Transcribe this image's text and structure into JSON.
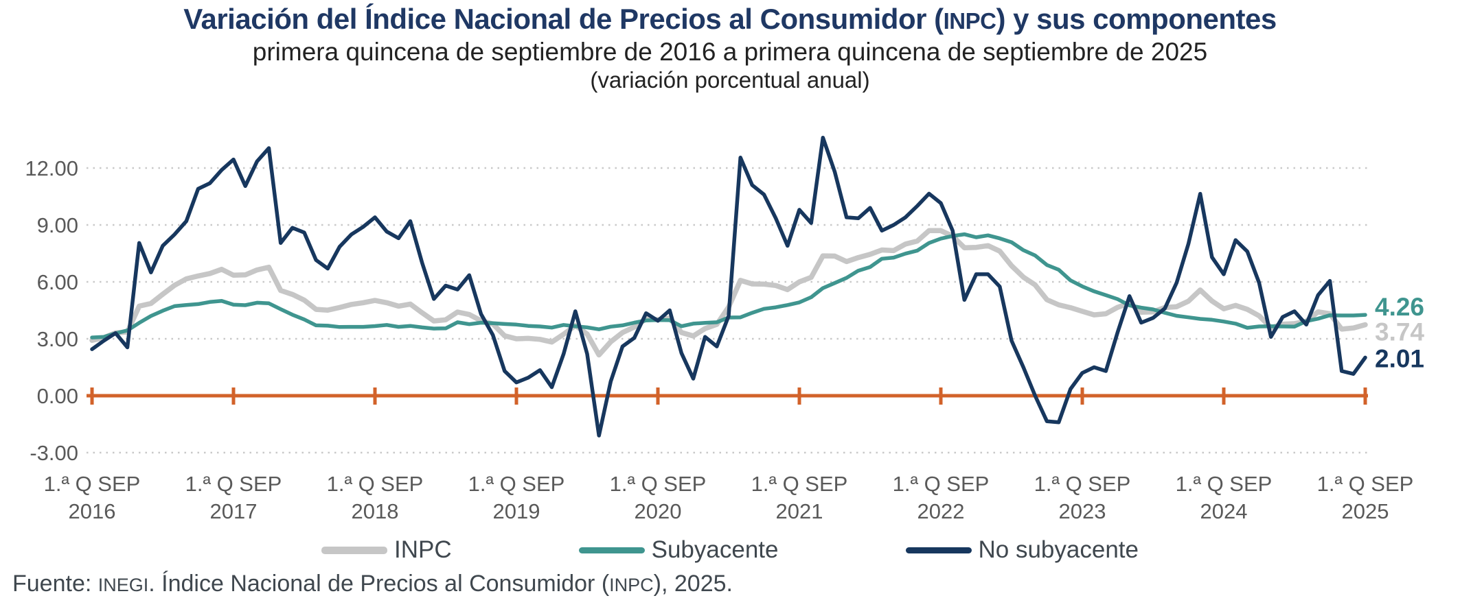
{
  "header": {
    "title_pre": "Variación del Índice Nacional de Precios al Consumidor (",
    "title_acr": "INPC",
    "title_post": ") y sus componentes",
    "subtitle": "primera quincena de septiembre de 2016 a primera quincena de septiembre de 2025",
    "subtitle2": "(variación porcentual anual)"
  },
  "footer": {
    "pre": "Fuente: ",
    "inst": "INEGI",
    "mid": ". Índice Nacional de Precios al Consumidor (",
    "acr": "INPC",
    "post": "), 2025."
  },
  "colors": {
    "title": "#1F3864",
    "inpc_line": "#C6C6C6",
    "subyacente_line": "#3F958F",
    "no_subyacente_line": "#17375E",
    "zero_axis": "#D2622A",
    "gridline": "#C9C9C9",
    "axis_text": "#595959",
    "legend_text": "#3F474E"
  },
  "chart_data": {
    "type": "line",
    "title": "Variación del Índice Nacional de Precios al Consumidor (INPC) y sus componentes",
    "subtitle": "primera quincena de septiembre de 2016 a primera quincena de septiembre de 2025",
    "ylabel": "variación porcentual anual",
    "ylim": [
      -3.0,
      13.9
    ],
    "grid": "horizontal dotted",
    "legend_position": "bottom",
    "x_tick_prefix": "1.ª Q SEP",
    "x_tick_years": [
      "2016",
      "2017",
      "2018",
      "2019",
      "2020",
      "2021",
      "2022",
      "2023",
      "2024",
      "2025"
    ],
    "y_ticks": [
      {
        "label": "12.00",
        "value": 12
      },
      {
        "label": "9.00",
        "value": 9
      },
      {
        "label": "6.00",
        "value": 6
      },
      {
        "label": "3.00",
        "value": 3
      },
      {
        "label": "0.00",
        "value": 0
      },
      {
        "label": "-3.00",
        "value": -3
      }
    ],
    "x": [
      "2016-09",
      "2016-10",
      "2016-11",
      "2016-12",
      "2017-01",
      "2017-02",
      "2017-03",
      "2017-04",
      "2017-05",
      "2017-06",
      "2017-07",
      "2017-08",
      "2017-09",
      "2017-10",
      "2017-11",
      "2017-12",
      "2018-01",
      "2018-02",
      "2018-03",
      "2018-04",
      "2018-05",
      "2018-06",
      "2018-07",
      "2018-08",
      "2018-09",
      "2018-10",
      "2018-11",
      "2018-12",
      "2019-01",
      "2019-02",
      "2019-03",
      "2019-04",
      "2019-05",
      "2019-06",
      "2019-07",
      "2019-08",
      "2019-09",
      "2019-10",
      "2019-11",
      "2019-12",
      "2020-01",
      "2020-02",
      "2020-03",
      "2020-04",
      "2020-05",
      "2020-06",
      "2020-07",
      "2020-08",
      "2020-09",
      "2020-10",
      "2020-11",
      "2020-12",
      "2021-01",
      "2021-02",
      "2021-03",
      "2021-04",
      "2021-05",
      "2021-06",
      "2021-07",
      "2021-08",
      "2021-09",
      "2021-10",
      "2021-11",
      "2021-12",
      "2022-01",
      "2022-02",
      "2022-03",
      "2022-04",
      "2022-05",
      "2022-06",
      "2022-07",
      "2022-08",
      "2022-09",
      "2022-10",
      "2022-11",
      "2022-12",
      "2023-01",
      "2023-02",
      "2023-03",
      "2023-04",
      "2023-05",
      "2023-06",
      "2023-07",
      "2023-08",
      "2023-09",
      "2023-10",
      "2023-11",
      "2023-12",
      "2024-01",
      "2024-02",
      "2024-03",
      "2024-04",
      "2024-05",
      "2024-06",
      "2024-07",
      "2024-08",
      "2024-09",
      "2024-10",
      "2024-11",
      "2024-12",
      "2025-01",
      "2025-02",
      "2025-03",
      "2025-04",
      "2025-05",
      "2025-06",
      "2025-07",
      "2025-08",
      "2025-09"
    ],
    "series": [
      {
        "name": "INPC",
        "color": "#C6C6C6",
        "stroke_width": 7.5,
        "end_label": "3.74",
        "values": [
          2.92,
          3.06,
          3.31,
          3.36,
          4.72,
          4.86,
          5.35,
          5.82,
          6.16,
          6.31,
          6.44,
          6.66,
          6.35,
          6.37,
          6.63,
          6.77,
          5.55,
          5.34,
          5.04,
          4.55,
          4.51,
          4.65,
          4.81,
          4.9,
          5.02,
          4.9,
          4.72,
          4.83,
          4.37,
          3.94,
          4.0,
          4.41,
          4.28,
          3.95,
          3.78,
          3.16,
          3.0,
          3.02,
          2.97,
          2.83,
          3.24,
          3.7,
          3.25,
          2.15,
          2.84,
          3.33,
          3.62,
          4.05,
          4.01,
          4.09,
          3.33,
          3.15,
          3.54,
          3.76,
          4.67,
          6.08,
          5.89,
          5.88,
          5.81,
          5.59,
          6.0,
          6.24,
          7.37,
          7.36,
          7.07,
          7.28,
          7.45,
          7.68,
          7.65,
          7.99,
          8.15,
          8.7,
          8.7,
          8.41,
          7.8,
          7.82,
          7.91,
          7.62,
          6.85,
          6.25,
          5.84,
          5.06,
          4.79,
          4.64,
          4.45,
          4.26,
          4.32,
          4.66,
          4.88,
          4.4,
          4.42,
          4.65,
          4.69,
          4.98,
          5.57,
          4.99,
          4.58,
          4.76,
          4.55,
          4.21,
          3.59,
          3.77,
          3.8,
          3.93,
          4.42,
          4.32,
          3.51,
          3.57,
          3.74
        ]
      },
      {
        "name": "Subyacente",
        "color": "#3F958F",
        "stroke_width": 5.5,
        "end_label": "4.26",
        "values": [
          3.07,
          3.1,
          3.29,
          3.44,
          3.84,
          4.2,
          4.48,
          4.72,
          4.78,
          4.83,
          4.94,
          5.0,
          4.8,
          4.77,
          4.9,
          4.87,
          4.56,
          4.27,
          4.02,
          3.71,
          3.69,
          3.62,
          3.63,
          3.63,
          3.67,
          3.73,
          3.63,
          3.68,
          3.6,
          3.54,
          3.55,
          3.87,
          3.77,
          3.85,
          3.82,
          3.78,
          3.75,
          3.68,
          3.65,
          3.59,
          3.73,
          3.66,
          3.6,
          3.5,
          3.64,
          3.71,
          3.85,
          3.97,
          3.99,
          3.98,
          3.66,
          3.8,
          3.84,
          3.87,
          4.12,
          4.13,
          4.37,
          4.58,
          4.66,
          4.78,
          4.92,
          5.19,
          5.67,
          5.94,
          6.21,
          6.59,
          6.78,
          7.22,
          7.28,
          7.49,
          7.65,
          8.05,
          8.28,
          8.42,
          8.51,
          8.35,
          8.45,
          8.29,
          8.09,
          7.67,
          7.39,
          6.89,
          6.64,
          6.08,
          5.76,
          5.5,
          5.3,
          5.09,
          4.76,
          4.64,
          4.55,
          4.37,
          4.21,
          4.13,
          4.05,
          4.0,
          3.91,
          3.8,
          3.58,
          3.65,
          3.66,
          3.65,
          3.64,
          3.93,
          4.06,
          4.24,
          4.23,
          4.23,
          4.26
        ]
      },
      {
        "name": "No subyacente",
        "color": "#17375E",
        "stroke_width": 5.5,
        "end_label": "2.01",
        "values": [
          2.45,
          2.9,
          3.3,
          2.55,
          8.05,
          6.5,
          7.9,
          8.5,
          9.2,
          10.9,
          11.2,
          11.9,
          12.45,
          11.05,
          12.35,
          13.05,
          8.05,
          8.85,
          8.6,
          7.15,
          6.7,
          7.85,
          8.5,
          8.9,
          9.4,
          8.65,
          8.3,
          9.2,
          7.0,
          5.1,
          5.8,
          5.6,
          6.35,
          4.3,
          3.2,
          1.3,
          0.7,
          0.95,
          1.35,
          0.45,
          2.2,
          4.45,
          2.2,
          -2.1,
          0.75,
          2.6,
          3.05,
          4.35,
          3.95,
          4.5,
          2.25,
          0.9,
          3.1,
          2.6,
          4.2,
          12.55,
          11.1,
          10.6,
          9.35,
          7.9,
          9.8,
          9.1,
          13.6,
          11.8,
          9.4,
          9.35,
          9.9,
          8.7,
          9.0,
          9.4,
          10.0,
          10.65,
          10.15,
          8.7,
          5.05,
          6.4,
          6.4,
          5.75,
          2.9,
          1.5,
          0.0,
          -1.35,
          -1.4,
          0.35,
          1.2,
          1.5,
          1.3,
          3.35,
          5.25,
          3.85,
          4.1,
          4.6,
          5.95,
          8.0,
          10.64,
          7.3,
          6.4,
          8.2,
          7.6,
          5.95,
          3.1,
          4.15,
          4.45,
          3.75,
          5.3,
          6.05,
          1.3,
          1.15,
          2.01
        ]
      }
    ]
  }
}
